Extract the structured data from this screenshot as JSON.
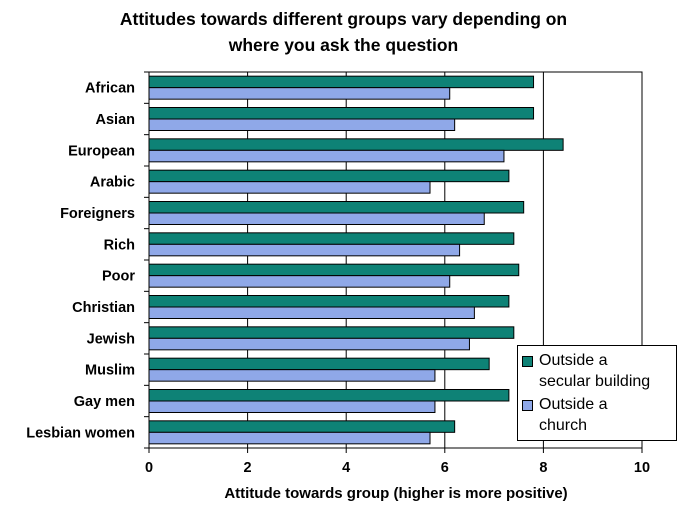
{
  "chart_data": {
    "type": "bar",
    "orientation": "horizontal",
    "title": [
      "Attitudes towards different groups vary depending on",
      "where you ask the question"
    ],
    "xlabel": "Attitude towards group (higher is more positive)",
    "xlim": [
      0,
      10
    ],
    "xticks": [
      0,
      2,
      4,
      6,
      8,
      10
    ],
    "grid": "vertical",
    "legend_position": "bottom-right",
    "categories": [
      "African",
      "Asian",
      "European",
      "Arabic",
      "Foreigners",
      "Rich",
      "Poor",
      "Christian",
      "Jewish",
      "Muslim",
      "Gay men",
      "Lesbian women"
    ],
    "series": [
      {
        "name": "Outside a secular building",
        "legend_lines": [
          "Outside a",
          "secular building"
        ],
        "color": "#0e8276",
        "values": [
          7.8,
          7.8,
          8.4,
          7.3,
          7.6,
          7.4,
          7.5,
          7.3,
          7.4,
          6.9,
          7.3,
          6.2
        ]
      },
      {
        "name": "Outside a church",
        "legend_lines": [
          "Outside a",
          "church"
        ],
        "color": "#8fa8e8",
        "values": [
          6.1,
          6.2,
          7.2,
          5.7,
          6.8,
          6.3,
          6.1,
          6.6,
          6.5,
          5.8,
          5.8,
          5.7
        ]
      }
    ]
  }
}
